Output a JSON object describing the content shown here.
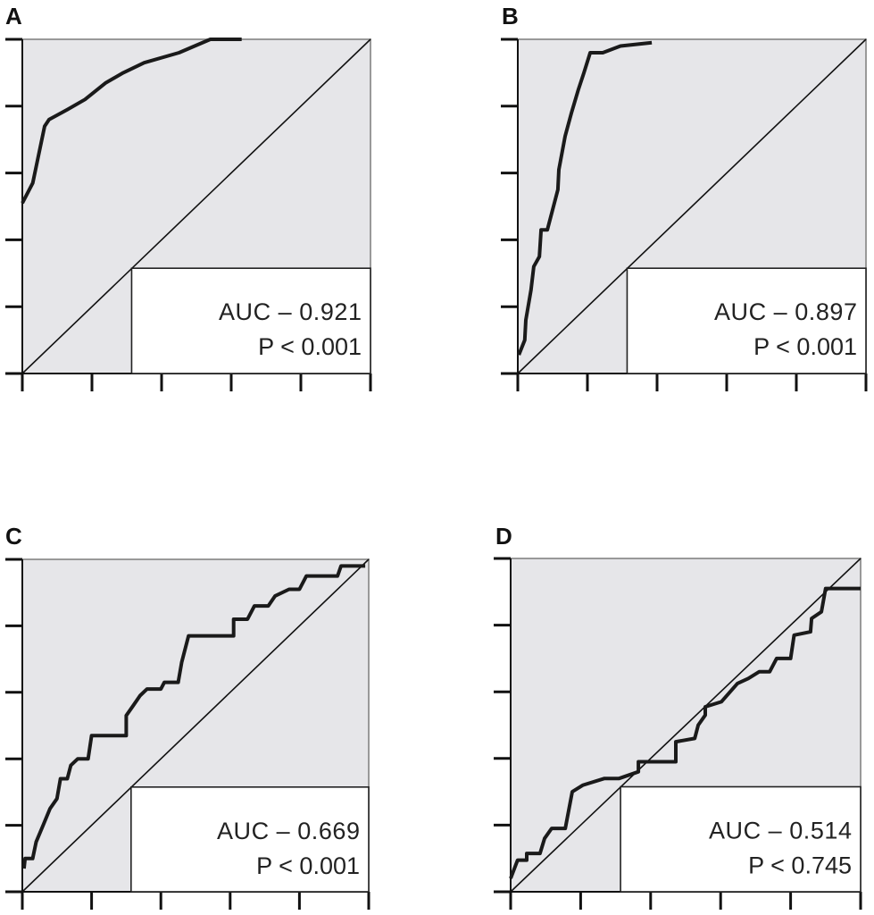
{
  "chart_data": [
    {
      "type": "line",
      "panel": "A",
      "xlim": [
        0,
        1
      ],
      "ylim": [
        0,
        1
      ],
      "auc_label": "AUC – 0.921",
      "p_label": "P < 0.001",
      "background": "#e6e6e9",
      "curve_color": "#1a1a1a",
      "x": [
        0,
        0.03,
        0.04,
        0.064,
        0.077,
        0.13,
        0.18,
        0.24,
        0.29,
        0.35,
        0.45,
        0.54,
        0.63
      ],
      "y": [
        0.51,
        0.57,
        0.62,
        0.74,
        0.76,
        0.79,
        0.82,
        0.87,
        0.9,
        0.93,
        0.96,
        1.0,
        1.0
      ]
    },
    {
      "type": "line",
      "panel": "B",
      "xlim": [
        0,
        1
      ],
      "ylim": [
        0,
        1
      ],
      "auc_label": "AUC – 0.897",
      "p_label": "P < 0.001",
      "background": "#e6e6e9",
      "curve_color": "#1a1a1a",
      "x": [
        0.003,
        0.02,
        0.023,
        0.038,
        0.046,
        0.062,
        0.067,
        0.085,
        0.115,
        0.118,
        0.136,
        0.154,
        0.174,
        0.19,
        0.208,
        0.244,
        0.295,
        0.385
      ],
      "y": [
        0.056,
        0.1,
        0.16,
        0.25,
        0.32,
        0.35,
        0.43,
        0.43,
        0.55,
        0.61,
        0.71,
        0.78,
        0.85,
        0.9,
        0.96,
        0.96,
        0.98,
        0.99
      ]
    },
    {
      "type": "line",
      "panel": "C",
      "xlim": [
        0,
        1
      ],
      "ylim": [
        0,
        1
      ],
      "auc_label": "AUC – 0.669",
      "p_label": "P < 0.001",
      "background": "#e6e6e9",
      "curve_color": "#1a1a1a",
      "x": [
        0.005,
        0.008,
        0.03,
        0.04,
        0.06,
        0.08,
        0.1,
        0.11,
        0.13,
        0.14,
        0.16,
        0.19,
        0.2,
        0.3,
        0.3,
        0.32,
        0.34,
        0.36,
        0.4,
        0.41,
        0.45,
        0.46,
        0.48,
        0.61,
        0.61,
        0.65,
        0.67,
        0.71,
        0.73,
        0.77,
        0.8,
        0.82,
        0.91,
        0.92,
        0.99
      ],
      "y": [
        0.07,
        0.1,
        0.1,
        0.15,
        0.2,
        0.25,
        0.28,
        0.34,
        0.34,
        0.38,
        0.4,
        0.4,
        0.47,
        0.47,
        0.53,
        0.56,
        0.59,
        0.61,
        0.61,
        0.63,
        0.63,
        0.69,
        0.77,
        0.77,
        0.82,
        0.82,
        0.86,
        0.86,
        0.89,
        0.91,
        0.91,
        0.95,
        0.95,
        0.98,
        0.98
      ]
    },
    {
      "type": "line",
      "panel": "D",
      "xlim": [
        0,
        1
      ],
      "ylim": [
        0,
        1
      ],
      "auc_label": "AUC – 0.514",
      "p_label": "P < 0.745",
      "background": "#e6e6e9",
      "curve_color": "#1a1a1a",
      "x": [
        0,
        0.02,
        0.046,
        0.046,
        0.084,
        0.097,
        0.117,
        0.156,
        0.176,
        0.207,
        0.268,
        0.31,
        0.365,
        0.365,
        0.472,
        0.472,
        0.526,
        0.536,
        0.556,
        0.556,
        0.602,
        0.648,
        0.679,
        0.71,
        0.74,
        0.76,
        0.8,
        0.81,
        0.857,
        0.86,
        0.888,
        0.9,
        1.0
      ],
      "y": [
        0.04,
        0.095,
        0.095,
        0.115,
        0.115,
        0.16,
        0.19,
        0.19,
        0.3,
        0.32,
        0.34,
        0.34,
        0.36,
        0.39,
        0.39,
        0.45,
        0.46,
        0.5,
        0.53,
        0.555,
        0.57,
        0.625,
        0.64,
        0.66,
        0.66,
        0.7,
        0.7,
        0.77,
        0.78,
        0.82,
        0.84,
        0.91,
        0.91
      ]
    }
  ]
}
